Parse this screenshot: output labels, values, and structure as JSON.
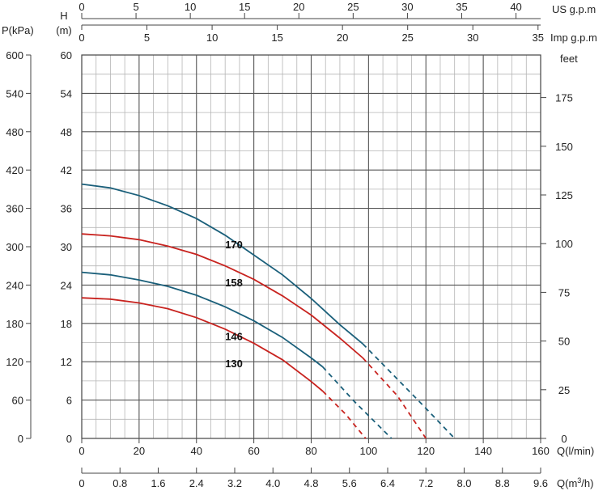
{
  "chart_data": {
    "type": "line",
    "axes": {
      "x_main": {
        "label": "Q(l/min)",
        "min": 0,
        "max": 160,
        "ticks": [
          0,
          20,
          40,
          60,
          80,
          100,
          120,
          140,
          160
        ]
      },
      "x_m3h": {
        "label": "Q(m",
        "label_sup": "3",
        "label_tail": "/h)",
        "min": 0,
        "max": 9.6,
        "ticks": [
          "0",
          "0.8",
          "1.6",
          "2.4",
          "3.2",
          "4.0",
          "4.8",
          "5.6",
          "6.4",
          "7.2",
          "8.0",
          "8.8",
          "9.6"
        ]
      },
      "x_us": {
        "label": "US  g.p.m",
        "min": 0,
        "max": 42.27,
        "ticks": [
          0,
          5,
          10,
          15,
          20,
          25,
          30,
          35,
          40
        ]
      },
      "x_imp": {
        "label": "Imp  g.p.m",
        "min": 0,
        "max": 35.2,
        "ticks": [
          0,
          5,
          10,
          15,
          20,
          25,
          30,
          35
        ]
      },
      "y_h": {
        "label_top": "H",
        "label_bottom": "(m)",
        "min": 0,
        "max": 60,
        "ticks": [
          0,
          6,
          12,
          18,
          24,
          30,
          36,
          42,
          48,
          54,
          60
        ]
      },
      "y_p": {
        "label": "P(kPa)",
        "min": 0,
        "max": 600,
        "ticks": [
          0,
          60,
          120,
          180,
          240,
          300,
          360,
          420,
          480,
          540,
          600
        ]
      },
      "y_feet": {
        "label": "feet",
        "min": 0,
        "max": 196.85,
        "ticks": [
          0,
          25,
          50,
          75,
          100,
          125,
          150,
          175
        ]
      }
    },
    "grid": true,
    "series": [
      {
        "name": "170",
        "color": "#1a5f7a",
        "solid_until": 98,
        "x": [
          0,
          10,
          20,
          30,
          40,
          50,
          60,
          70,
          80,
          90,
          98,
          110,
          120,
          130
        ],
        "y": [
          39.8,
          39.2,
          38.0,
          36.4,
          34.4,
          31.8,
          28.7,
          25.6,
          21.9,
          17.8,
          14.8,
          9.3,
          4.7,
          0
        ]
      },
      {
        "name": "158",
        "color": "#c8231f",
        "solid_until": 98,
        "x": [
          0,
          10,
          20,
          30,
          40,
          50,
          60,
          70,
          80,
          90,
          98,
          110,
          120
        ],
        "y": [
          32.0,
          31.7,
          31.1,
          30.1,
          28.8,
          27.0,
          24.9,
          22.3,
          19.3,
          15.7,
          12.6,
          6.7,
          0
        ]
      },
      {
        "name": "146",
        "color": "#1a5f7a",
        "solid_until": 84,
        "x": [
          0,
          10,
          20,
          30,
          40,
          50,
          60,
          70,
          80,
          84,
          95,
          108
        ],
        "y": [
          26.0,
          25.6,
          24.8,
          23.8,
          22.4,
          20.6,
          18.4,
          15.8,
          12.6,
          11.2,
          5.8,
          0
        ]
      },
      {
        "name": "130",
        "color": "#c8231f",
        "solid_until": 84,
        "x": [
          0,
          10,
          20,
          30,
          40,
          50,
          60,
          70,
          80,
          84,
          92,
          99
        ],
        "y": [
          22.0,
          21.8,
          21.2,
          20.3,
          18.9,
          17.1,
          14.9,
          12.3,
          8.9,
          7.4,
          3.8,
          0
        ]
      }
    ]
  }
}
